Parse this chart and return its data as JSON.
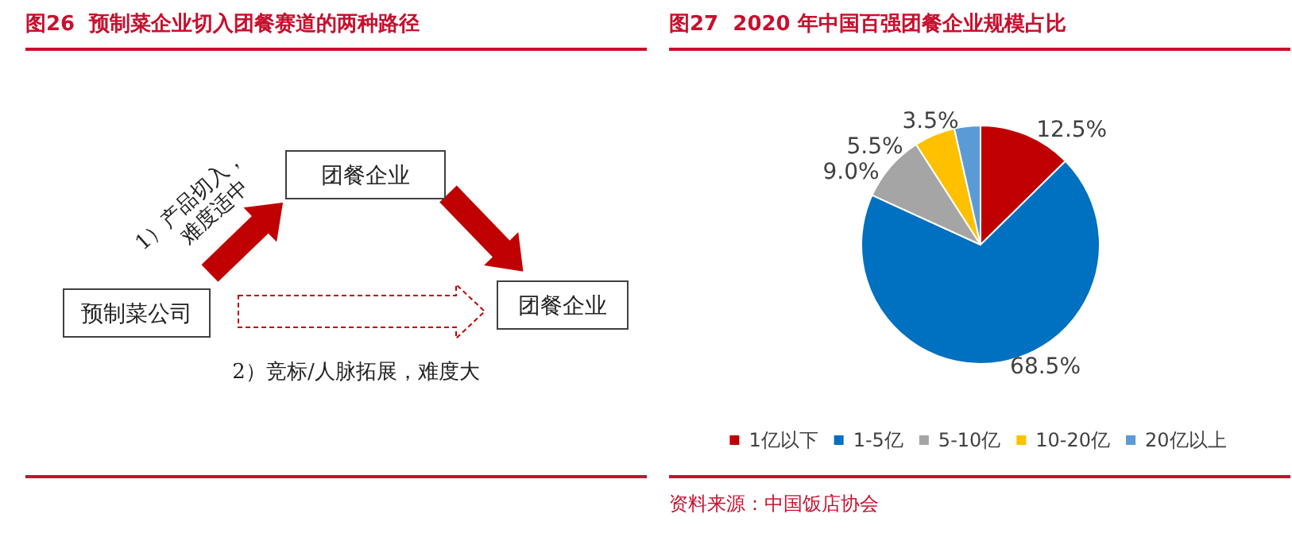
{
  "chart_data": [
    {
      "type": "other",
      "title": "图26  预制菜企业切入团餐赛道的两种路径",
      "annotations": [
        "团餐企业",
        "1）产品切入，\n难度适中",
        "预制菜公司",
        "团餐企业",
        "2）竞标/人脉拓展，难度大"
      ]
    },
    {
      "type": "pie",
      "title": "图27  2020 年中国百强团餐企业规模占比",
      "categories": [
        "1亿以下",
        "1-5亿",
        "5-10亿",
        "10-20亿",
        "20亿以上"
      ],
      "values": [
        12.5,
        68.5,
        9.0,
        5.5,
        3.5
      ],
      "value_labels": [
        "12.5%",
        "68.5%",
        "9.0%",
        "5.5%",
        "3.5%"
      ],
      "colors": [
        "#c00000",
        "#0070c0",
        "#a5a5a5",
        "#ffc000",
        "#5b9bd5"
      ],
      "legend": "bottom",
      "annotations": [
        "资料来源：中国饭店协会"
      ]
    }
  ]
}
